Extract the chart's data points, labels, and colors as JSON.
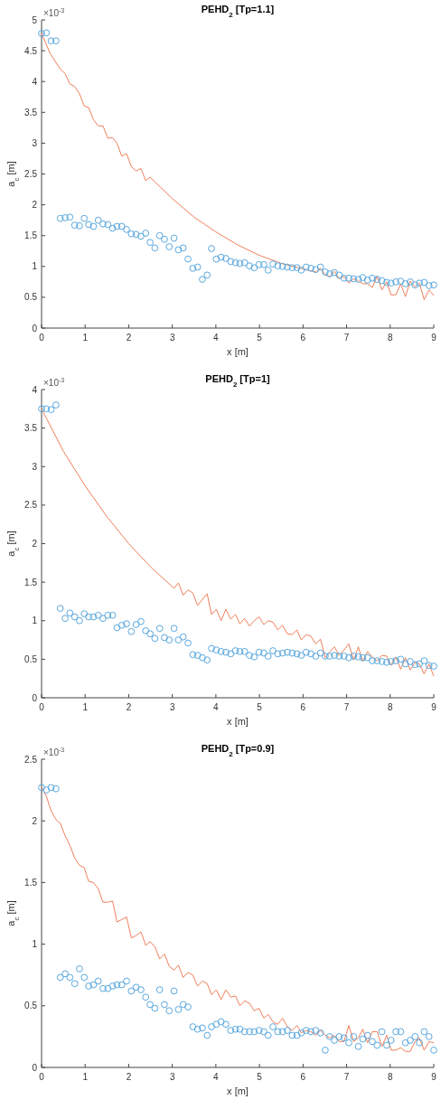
{
  "chart_data": [
    {
      "type": "line",
      "title": "PEHD$_{2}$ [Tp=1.1]",
      "xlabel": "x [m]",
      "ylabel": "a$_{c}$ [m]",
      "annotations": [
        "×10$^{-3}$"
      ],
      "xlim": [
        0,
        9
      ],
      "ylim": [
        0,
        5
      ],
      "xticks": [
        0,
        1,
        2,
        3,
        4,
        5,
        6,
        7,
        8,
        9
      ],
      "yticks": [
        0,
        0.5,
        1,
        1.5,
        2,
        2.5,
        3,
        3.5,
        4,
        4.5,
        5
      ],
      "series": [
        {
          "color": "#ee7f5a",
          "x": [
            0,
            0.2,
            0.43,
            0.54,
            0.65,
            0.76,
            0.87,
            0.98,
            1.08,
            1.19,
            1.3,
            1.41,
            1.52,
            1.63,
            1.73,
            1.84,
            1.95,
            2.06,
            2.17,
            2.28,
            2.39,
            2.49,
            3,
            3.5,
            4,
            4.5,
            5,
            5.5,
            6,
            6.29,
            6.4,
            6.51,
            6.61,
            6.72,
            6.83,
            6.94,
            7.05,
            7.16,
            7.27,
            7.37,
            7.48,
            7.59,
            7.7,
            7.81,
            7.92,
            8.02,
            8.13,
            8.24,
            8.35,
            8.46,
            8.57,
            8.67,
            8.78,
            8.89,
            9
          ],
          "values": [
            4.78,
            4.45,
            4.2,
            4.13,
            3.96,
            3.92,
            3.8,
            3.6,
            3.58,
            3.38,
            3.28,
            3.28,
            3.08,
            3.09,
            3,
            2.79,
            2.83,
            2.62,
            2.55,
            2.59,
            2.39,
            2.45,
            2.1,
            1.8,
            1.56,
            1.35,
            1.18,
            1.05,
            0.96,
            0.91,
            0.97,
            0.86,
            0.84,
            0.92,
            0.8,
            0.84,
            0.73,
            0.8,
            0.77,
            0.72,
            0.72,
            0.66,
            0.84,
            0.62,
            0.75,
            0.54,
            0.54,
            0.72,
            0.51,
            0.76,
            0.67,
            0.73,
            0.46,
            0.62,
            0.53
          ]
        },
        {
          "type": "scatter",
          "marker": "circle",
          "color": "#5aa8de",
          "x": [
            0,
            0.11,
            0.22,
            0.33,
            0.43,
            0.54,
            0.65,
            0.76,
            0.87,
            0.98,
            1.08,
            1.19,
            1.3,
            1.41,
            1.52,
            1.63,
            1.73,
            1.84,
            1.95,
            2.06,
            2.17,
            2.28,
            2.39,
            2.49,
            2.6,
            2.71,
            2.82,
            2.93,
            3.04,
            3.14,
            3.25,
            3.36,
            3.47,
            3.58,
            3.69,
            3.8,
            3.9,
            4.01,
            4.12,
            4.23,
            4.34,
            4.45,
            4.55,
            4.66,
            4.77,
            4.88,
            4.99,
            5.1,
            5.2,
            5.31,
            5.42,
            5.53,
            5.64,
            5.75,
            5.86,
            5.96,
            6.07,
            6.18,
            6.29,
            6.4,
            6.51,
            6.61,
            6.72,
            6.83,
            6.94,
            7.05,
            7.16,
            7.27,
            7.37,
            7.48,
            7.59,
            7.7,
            7.81,
            7.92,
            8.02,
            8.13,
            8.24,
            8.35,
            8.46,
            8.57,
            8.67,
            8.78,
            8.89,
            9
          ],
          "values": [
            4.78,
            4.79,
            4.66,
            4.66,
            1.78,
            1.79,
            1.8,
            1.67,
            1.66,
            1.78,
            1.68,
            1.65,
            1.75,
            1.69,
            1.68,
            1.62,
            1.65,
            1.65,
            1.6,
            1.53,
            1.52,
            1.49,
            1.54,
            1.39,
            1.3,
            1.5,
            1.44,
            1.32,
            1.46,
            1.27,
            1.3,
            1.12,
            0.97,
            0.99,
            0.79,
            0.86,
            1.29,
            1.12,
            1.15,
            1.13,
            1.08,
            1.06,
            1.05,
            1.06,
            1.01,
            0.98,
            1.03,
            1.03,
            0.94,
            1.04,
            1.01,
            1,
            0.99,
            0.98,
            0.98,
            0.94,
            0.99,
            0.97,
            0.95,
            0.99,
            0.91,
            0.88,
            0.9,
            0.86,
            0.81,
            0.81,
            0.8,
            0.79,
            0.82,
            0.78,
            0.81,
            0.79,
            0.77,
            0.74,
            0.73,
            0.75,
            0.76,
            0.72,
            0.75,
            0.7,
            0.73,
            0.74,
            0.69,
            0.7
          ]
        }
      ]
    },
    {
      "type": "line",
      "title": "PEHD$_{2}$ [Tp=1]",
      "xlabel": "x [m]",
      "ylabel": "a$_{c}$ [m]",
      "annotations": [
        "×10$^{-3}$"
      ],
      "xlim": [
        0,
        9
      ],
      "ylim": [
        0,
        4
      ],
      "xticks": [
        0,
        1,
        2,
        3,
        4,
        5,
        6,
        7,
        8,
        9
      ],
      "yticks": [
        0,
        0.5,
        1,
        1.5,
        2,
        2.5,
        3,
        3.5,
        4
      ],
      "series": [
        {
          "color": "#ee7f5a",
          "x": [
            0,
            0.5,
            1,
            1.5,
            2,
            2.5,
            3.04,
            3.14,
            3.25,
            3.36,
            3.47,
            3.58,
            3.8,
            3.9,
            4.01,
            4.12,
            4.23,
            4.34,
            4.45,
            4.55,
            4.66,
            4.77,
            4.88,
            4.99,
            5.1,
            5.2,
            5.31,
            5.42,
            5.53,
            5.64,
            5.75,
            5.86,
            5.96,
            6.07,
            6.18,
            6.29,
            6.4,
            6.51,
            6.61,
            6.72,
            6.83,
            6.94,
            7.05,
            7.16,
            7.27,
            7.37,
            7.48,
            7.59,
            7.7,
            7.81,
            7.92,
            8.02,
            8.13,
            8.24,
            8.35,
            8.46,
            8.57,
            8.67,
            8.78,
            8.89,
            9
          ],
          "values": [
            3.75,
            3.2,
            2.75,
            2.35,
            2,
            1.7,
            1.42,
            1.49,
            1.33,
            1.4,
            1.36,
            1.2,
            1.35,
            1.08,
            1.15,
            1,
            1.15,
            1.02,
            1.08,
            0.96,
            1.03,
            0.93,
            1,
            1.05,
            0.95,
            1,
            0.98,
            0.88,
            0.94,
            0.83,
            0.82,
            0.88,
            0.75,
            0.82,
            0.8,
            0.7,
            0.76,
            0.52,
            0.59,
            0.66,
            0.55,
            0.62,
            0.7,
            0.49,
            0.66,
            0.47,
            0.6,
            0.53,
            0.48,
            0.55,
            0.54,
            0.42,
            0.53,
            0.37,
            0.52,
            0.36,
            0.46,
            0.44,
            0.31,
            0.44,
            0.28
          ]
        },
        {
          "type": "scatter",
          "marker": "circle",
          "color": "#5aa8de",
          "x": [
            0,
            0.11,
            0.22,
            0.33,
            0.43,
            0.54,
            0.65,
            0.76,
            0.87,
            0.98,
            1.08,
            1.19,
            1.3,
            1.41,
            1.52,
            1.63,
            1.73,
            1.84,
            1.95,
            2.06,
            2.17,
            2.28,
            2.39,
            2.49,
            2.6,
            2.71,
            2.82,
            2.93,
            3.04,
            3.14,
            3.25,
            3.36,
            3.47,
            3.58,
            3.69,
            3.8,
            3.9,
            4.01,
            4.12,
            4.23,
            4.34,
            4.45,
            4.55,
            4.66,
            4.77,
            4.88,
            4.99,
            5.1,
            5.2,
            5.31,
            5.42,
            5.53,
            5.64,
            5.75,
            5.86,
            5.96,
            6.07,
            6.18,
            6.29,
            6.4,
            6.51,
            6.61,
            6.72,
            6.83,
            6.94,
            7.05,
            7.16,
            7.27,
            7.37,
            7.48,
            7.59,
            7.7,
            7.81,
            7.92,
            8.02,
            8.13,
            8.24,
            8.35,
            8.46,
            8.57,
            8.67,
            8.78,
            8.89,
            9
          ],
          "values": [
            3.75,
            3.75,
            3.74,
            3.8,
            1.16,
            1.03,
            1.1,
            1.05,
            1,
            1.09,
            1.05,
            1.05,
            1.07,
            1.03,
            1.07,
            1.07,
            0.91,
            0.94,
            0.96,
            0.86,
            0.95,
            0.99,
            0.87,
            0.83,
            0.77,
            0.9,
            0.78,
            0.75,
            0.9,
            0.75,
            0.79,
            0.71,
            0.56,
            0.55,
            0.52,
            0.49,
            0.64,
            0.62,
            0.6,
            0.59,
            0.57,
            0.61,
            0.6,
            0.6,
            0.55,
            0.53,
            0.59,
            0.58,
            0.54,
            0.61,
            0.57,
            0.58,
            0.59,
            0.58,
            0.57,
            0.55,
            0.59,
            0.57,
            0.54,
            0.58,
            0.54,
            0.54,
            0.55,
            0.54,
            0.54,
            0.52,
            0.54,
            0.53,
            0.52,
            0.52,
            0.48,
            0.48,
            0.47,
            0.46,
            0.47,
            0.48,
            0.5,
            0.44,
            0.47,
            0.43,
            0.44,
            0.48,
            0.42,
            0.41
          ]
        }
      ]
    },
    {
      "type": "line",
      "title": "PEHD$_{2}$ [Tp=0.9]",
      "xlabel": "x [m]",
      "ylabel": "a$_{c}$ [m]",
      "annotations": [
        "×10$^{-3}$"
      ],
      "xlim": [
        0,
        9
      ],
      "ylim": [
        0,
        2.5
      ],
      "xticks": [
        0,
        1,
        2,
        3,
        4,
        5,
        6,
        7,
        8,
        9
      ],
      "yticks": [
        0,
        0.5,
        1,
        1.5,
        2,
        2.5
      ],
      "series": [
        {
          "color": "#ee7f5a",
          "x": [
            0,
            0.11,
            0.22,
            0.33,
            0.43,
            0.54,
            0.65,
            0.76,
            0.87,
            0.98,
            1.08,
            1.19,
            1.3,
            1.41,
            1.52,
            1.63,
            1.73,
            1.84,
            1.95,
            2.06,
            2.17,
            2.28,
            2.39,
            2.49,
            2.6,
            2.71,
            2.82,
            2.93,
            3.04,
            3.14,
            3.25,
            3.36,
            3.47,
            3.58,
            3.69,
            3.8,
            3.9,
            4.01,
            4.12,
            4.23,
            4.34,
            4.45,
            4.55,
            4.66,
            4.77,
            4.88,
            4.99,
            5.1,
            5.2,
            5.31,
            5.42,
            5.53,
            5.64,
            5.75,
            5.86,
            5.96,
            6.07,
            6.18,
            6.29,
            6.4,
            6.51,
            6.61,
            6.72,
            6.83,
            6.94,
            7.05,
            7.16,
            7.27,
            7.37,
            7.48,
            7.59,
            7.7,
            7.81,
            7.92,
            8.02,
            8.13,
            8.24,
            8.35,
            8.46,
            8.57,
            8.67,
            8.78,
            8.89,
            9
          ],
          "values": [
            2.27,
            2.2,
            2.08,
            2.01,
            1.98,
            1.88,
            1.8,
            1.7,
            1.64,
            1.62,
            1.51,
            1.5,
            1.45,
            1.34,
            1.34,
            1.35,
            1.18,
            1.2,
            1.22,
            1.05,
            1.07,
            1.1,
            0.99,
            1.02,
            0.98,
            0.88,
            0.92,
            0.82,
            0.79,
            0.83,
            0.73,
            0.77,
            0.75,
            0.66,
            0.7,
            0.68,
            0.59,
            0.63,
            0.55,
            0.63,
            0.57,
            0.58,
            0.5,
            0.54,
            0.52,
            0.46,
            0.48,
            0.4,
            0.43,
            0.37,
            0.35,
            0.4,
            0.33,
            0.3,
            0.34,
            0.28,
            0.3,
            0.29,
            0.26,
            0.3,
            0.26,
            0.24,
            0.26,
            0.21,
            0.21,
            0.34,
            0.21,
            0.24,
            0.31,
            0.2,
            0.29,
            0.29,
            0.17,
            0.26,
            0.14,
            0.14,
            0.16,
            0.13,
            0.13,
            0.21,
            0.24,
            0.14,
            0.21,
            0.2
          ]
        },
        {
          "type": "scatter",
          "marker": "circle",
          "color": "#5aa8de",
          "x": [
            0,
            0.11,
            0.22,
            0.33,
            0.43,
            0.54,
            0.65,
            0.76,
            0.87,
            0.98,
            1.08,
            1.19,
            1.3,
            1.41,
            1.52,
            1.63,
            1.73,
            1.84,
            1.95,
            2.06,
            2.17,
            2.28,
            2.39,
            2.49,
            2.6,
            2.71,
            2.82,
            2.93,
            3.04,
            3.14,
            3.25,
            3.36,
            3.47,
            3.58,
            3.69,
            3.8,
            3.9,
            4.01,
            4.12,
            4.23,
            4.34,
            4.45,
            4.55,
            4.66,
            4.77,
            4.88,
            4.99,
            5.1,
            5.2,
            5.31,
            5.42,
            5.53,
            5.64,
            5.75,
            5.86,
            5.96,
            6.07,
            6.18,
            6.29,
            6.4,
            6.51,
            6.61,
            6.72,
            6.83,
            6.94,
            7.05,
            7.16,
            7.27,
            7.37,
            7.48,
            7.59,
            7.7,
            7.81,
            7.92,
            8.02,
            8.13,
            8.24,
            8.35,
            8.46,
            8.57,
            8.67,
            8.78,
            8.89,
            9
          ],
          "values": [
            2.27,
            2.25,
            2.27,
            2.26,
            0.73,
            0.76,
            0.73,
            0.68,
            0.8,
            0.73,
            0.66,
            0.67,
            0.7,
            0.64,
            0.64,
            0.66,
            0.67,
            0.67,
            0.7,
            0.62,
            0.65,
            0.63,
            0.57,
            0.51,
            0.48,
            0.63,
            0.51,
            0.46,
            0.62,
            0.47,
            0.51,
            0.49,
            0.33,
            0.31,
            0.32,
            0.26,
            0.33,
            0.35,
            0.37,
            0.35,
            0.3,
            0.31,
            0.31,
            0.29,
            0.29,
            0.29,
            0.3,
            0.29,
            0.26,
            0.33,
            0.29,
            0.29,
            0.3,
            0.26,
            0.26,
            0.28,
            0.3,
            0.29,
            0.3,
            0.28,
            0.14,
            0.25,
            0.22,
            0.25,
            0.24,
            0.2,
            0.25,
            0.17,
            0.23,
            0.26,
            0.21,
            0.18,
            0.29,
            0.18,
            0.22,
            0.29,
            0.29,
            0.2,
            0.22,
            0.25,
            0.2,
            0.29,
            0.25,
            0.14
          ]
        }
      ]
    }
  ]
}
